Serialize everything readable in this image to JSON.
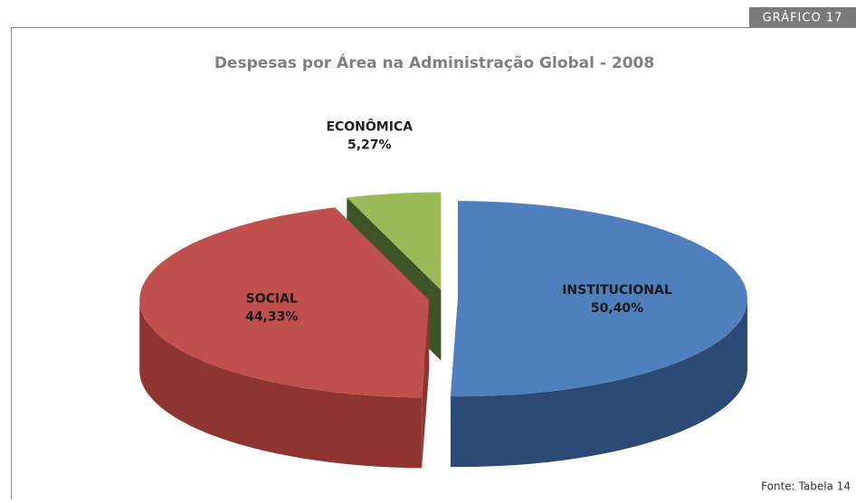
{
  "badge": "GRÁFICO 17",
  "source": "Fonte: Tabela 14",
  "chart_data": {
    "type": "pie",
    "title": "Despesas por Área na Administração Global - 2008",
    "categories": [
      "INSTITUCIONAL",
      "SOCIAL",
      "ECONÔMICA"
    ],
    "values": [
      50.4,
      44.33,
      5.27
    ],
    "value_labels": [
      "50,40%",
      "44,33%",
      "5,27%"
    ],
    "colors": [
      "#4f7fbd",
      "#c0504d",
      "#9bbb59"
    ],
    "side_colors": [
      "#2b4a76",
      "#8e3532",
      "#3e5426"
    ]
  }
}
